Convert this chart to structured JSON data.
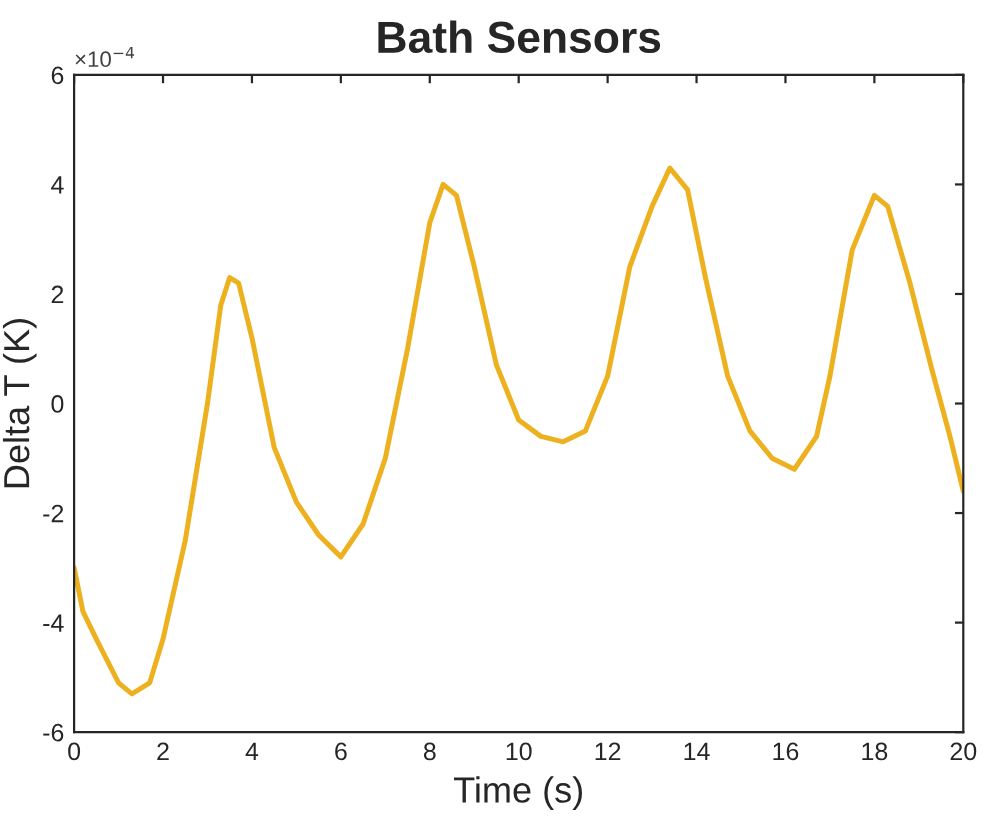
{
  "chart_data": {
    "type": "line",
    "title": "Bath Sensors",
    "xlabel": "Time (s)",
    "ylabel": "Delta T (K)",
    "annotations": [
      "×10$^{−4}$"
    ],
    "x": [
      0,
      0.2,
      0.5,
      1.0,
      1.3,
      1.7,
      2.0,
      2.5,
      3.0,
      3.3,
      3.5,
      3.7,
      4.0,
      4.5,
      5.0,
      5.5,
      6.0,
      6.5,
      7.0,
      7.5,
      8.0,
      8.3,
      8.6,
      9.0,
      9.5,
      10.0,
      10.5,
      11.0,
      11.5,
      12.0,
      12.5,
      13.0,
      13.4,
      13.8,
      14.2,
      14.7,
      15.2,
      15.7,
      16.2,
      16.7,
      17.0,
      17.5,
      18.0,
      18.3,
      18.8,
      19.3,
      19.7,
      20
    ],
    "series": [
      {
        "color": "#edb120",
        "values": [
          -3.0,
          -3.8,
          -4.3,
          -5.1,
          -5.3,
          -5.1,
          -4.3,
          -2.5,
          0.0,
          1.8,
          2.3,
          2.2,
          1.2,
          -0.8,
          -1.8,
          -2.4,
          -2.8,
          -2.2,
          -1.0,
          1.0,
          3.3,
          4.0,
          3.8,
          2.5,
          0.7,
          -0.3,
          -0.6,
          -0.7,
          -0.5,
          0.5,
          2.5,
          3.6,
          4.3,
          3.9,
          2.3,
          0.5,
          -0.5,
          -1.0,
          -1.2,
          -0.6,
          0.5,
          2.8,
          3.8,
          3.6,
          2.2,
          0.6,
          -0.6,
          -1.6
        ]
      }
    ],
    "xlim": [
      0,
      20
    ],
    "xticks": [
      0,
      2,
      4,
      6,
      8,
      10,
      12,
      14,
      16,
      18,
      20
    ],
    "ylim": [
      -6,
      6
    ],
    "yticks": [
      -6,
      -4,
      -2,
      0,
      2,
      4,
      6
    ],
    "grid": false,
    "legend": false,
    "marker": "none",
    "line_style": "solid"
  }
}
